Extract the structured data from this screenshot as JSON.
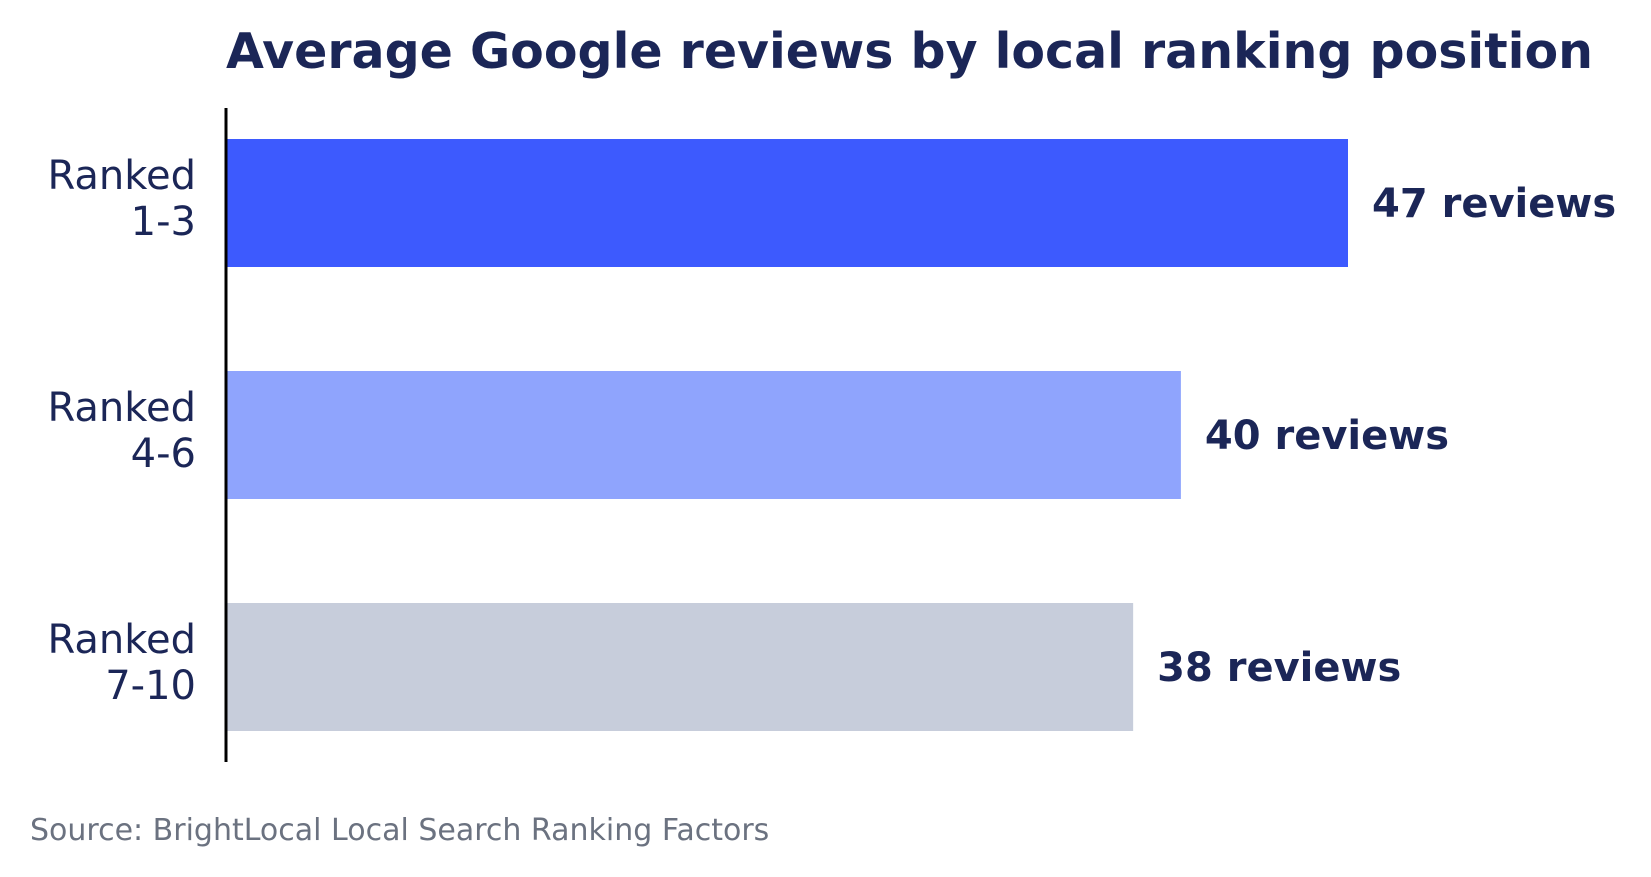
{
  "chart_data": {
    "type": "bar",
    "orientation": "horizontal",
    "title": "Average Google reviews by local ranking position",
    "categories": [
      [
        "Ranked",
        "1-3"
      ],
      [
        "Ranked",
        "4-6"
      ],
      [
        "Ranked",
        "7-10"
      ]
    ],
    "values": [
      47,
      40,
      38
    ],
    "value_labels": [
      "47 reviews",
      "40 reviews",
      "38 reviews"
    ],
    "bar_colors": [
      "#3d5afe",
      "#8fa4fd",
      "#c7cddb"
    ],
    "xlim": [
      0,
      47
    ],
    "xlabel": "",
    "ylabel": "",
    "grid": false,
    "legend": "none",
    "source": "Source: BrightLocal Local Search Ranking Factors"
  },
  "colors": {
    "text_dark": "#1b2657",
    "source_text": "#6b7280",
    "axis_line": "#000000",
    "background": "#ffffff"
  }
}
